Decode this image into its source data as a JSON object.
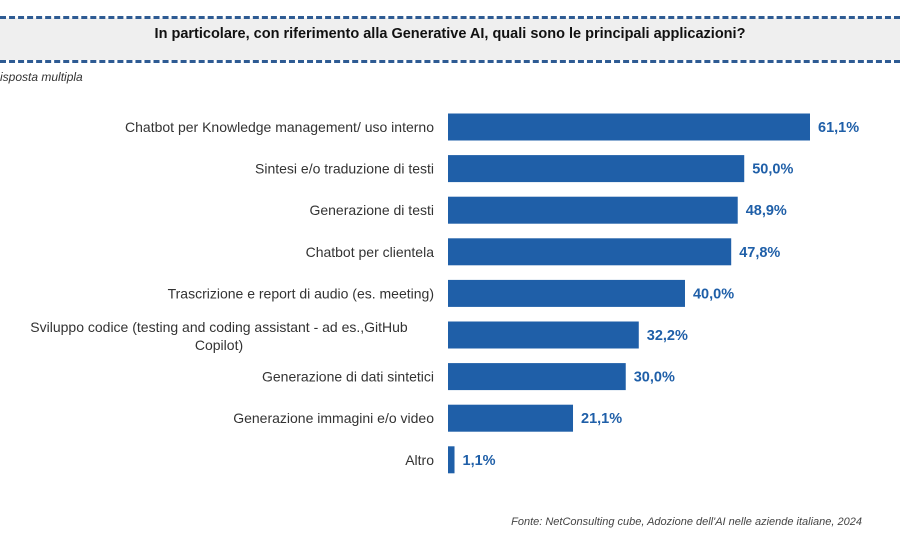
{
  "header": {
    "title": "In particolare, con riferimento alla Generative AI, quali sono le principali applicazioni?",
    "subtitle": "isposta multipla"
  },
  "footer": {
    "source": "Fonte: NetConsulting cube, Adozione dell'AI nelle aziende italiane, 2024"
  },
  "colors": {
    "bar": "#1f5fa8",
    "value_text": "#1f5fa8",
    "dash": "#2e5b93"
  },
  "chart_data": {
    "type": "bar",
    "orientation": "horizontal",
    "categories": [
      "Chatbot per Knowledge management/ uso interno",
      "Sintesi e/o traduzione di testi",
      "Generazione di testi",
      "Chatbot per clientela",
      "Trascrizione e report di audio (es. meeting)",
      "Sviluppo codice (testing and coding assistant - ad es.,GitHub Copilot)",
      "Generazione di dati sintetici",
      "Generazione immagini e/o video",
      "Altro"
    ],
    "category_lines": [
      [
        "Chatbot per Knowledge management/ uso interno"
      ],
      [
        "Sintesi e/o traduzione di testi"
      ],
      [
        "Generazione di testi"
      ],
      [
        "Chatbot per clientela"
      ],
      [
        "Trascrizione e report di audio (es. meeting)"
      ],
      [
        "Sviluppo codice (testing and coding assistant - ad es.,GitHub",
        "Copilot)"
      ],
      [
        "Generazione di dati sintetici"
      ],
      [
        "Generazione immagini e/o video"
      ],
      [
        "Altro"
      ]
    ],
    "values": [
      61.1,
      50.0,
      48.9,
      47.8,
      40.0,
      32.2,
      30.0,
      21.1,
      1.1
    ],
    "value_labels": [
      "61,1%",
      "50,0%",
      "48,9%",
      "47,8%",
      "40,0%",
      "32,2%",
      "30,0%",
      "21,1%",
      "1,1%"
    ],
    "xlim": [
      0,
      100
    ],
    "grid": false,
    "legend": "none"
  }
}
